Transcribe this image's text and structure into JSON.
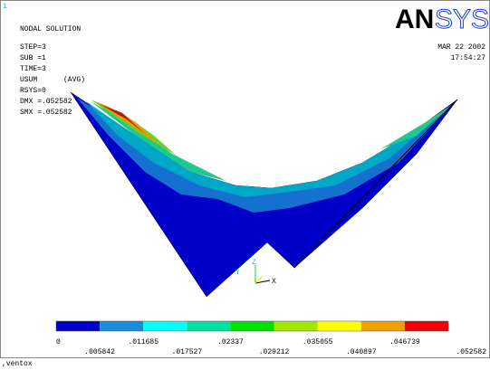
{
  "window": {
    "number": "1",
    "title": "NODAL SOLUTION",
    "info": [
      "STEP=3",
      "SUB =1",
      "TIME=3",
      "USUM      (AVG)",
      "RSYS=0",
      "DMX =.052582",
      "SMX =.052582"
    ],
    "date": "MAR 22 2002",
    "time": "17:54:27",
    "logo": {
      "bold": "AN",
      "light": "SYS"
    },
    "axes": {
      "y": "Y",
      "z": "Z",
      "x": "X"
    },
    "legend": {
      "labels": [
        "0",
        ".005842",
        ".011685",
        ".017527",
        ".02337",
        ".029212",
        ".035055",
        ".040897",
        ".046739",
        ".052582"
      ]
    },
    "command": ",ventox"
  }
}
